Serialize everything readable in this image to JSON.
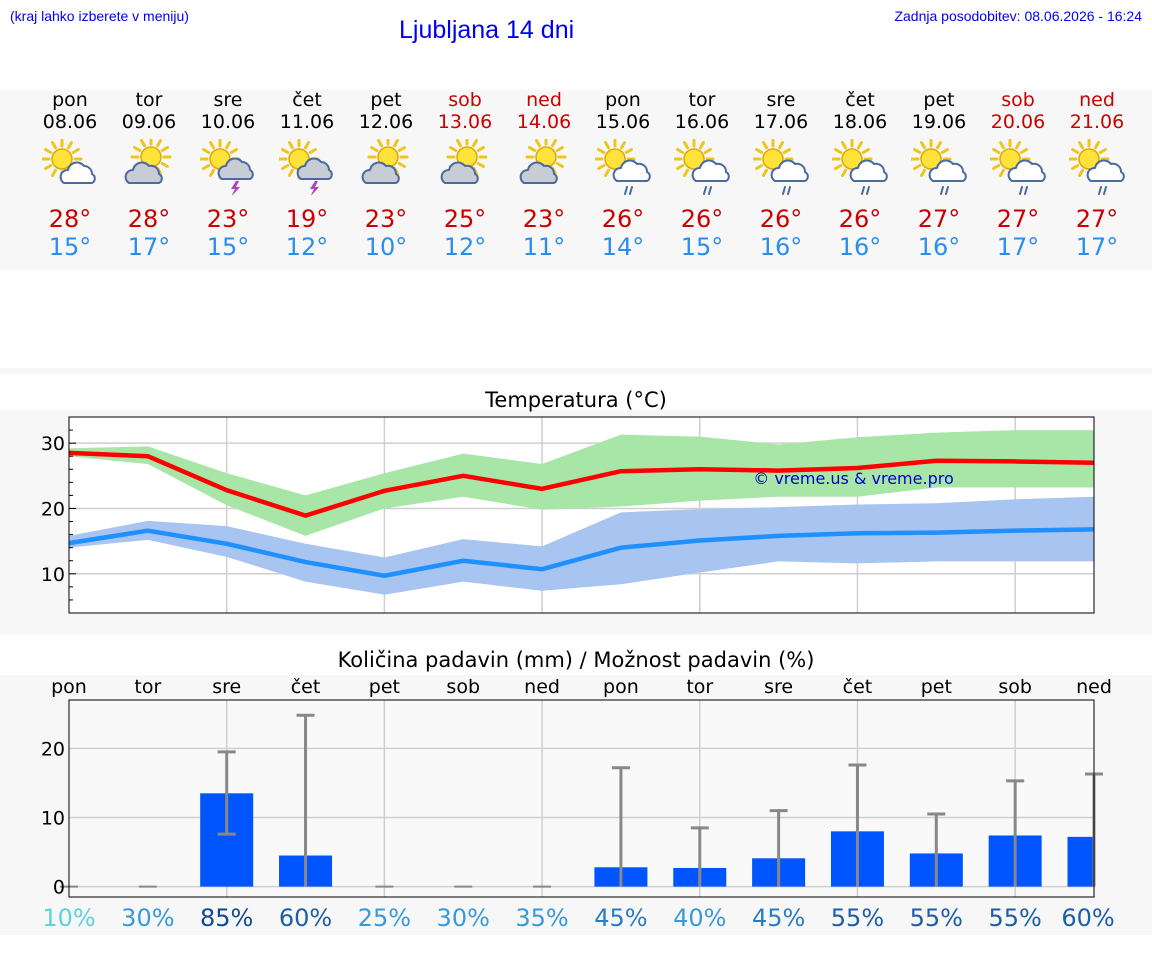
{
  "header": {
    "hint": "(kraj lahko izberete v meniju)",
    "title": "Ljubljana 14 dni",
    "updated": "Zadnja posodobitev: 08.06.2026 - 16:24"
  },
  "colors": {
    "link": "#0000ee",
    "max_temp": "#cc0000",
    "min_temp": "#2a8ef0",
    "max_band": "#a8e6a8",
    "min_band": "#a8c4f0",
    "max_line": "#ff0000",
    "min_line": "#1e90ff",
    "bars": "#0055ff",
    "error_bars": "#888888"
  },
  "forecast": {
    "days": [
      {
        "name": "pon",
        "date": "08.06",
        "icon": "partly-cloudy-icon",
        "max": "28°",
        "min": "15°",
        "weekend": false
      },
      {
        "name": "tor",
        "date": "09.06",
        "icon": "mostly-cloudy-icon",
        "max": "28°",
        "min": "17°",
        "weekend": false
      },
      {
        "name": "sre",
        "date": "10.06",
        "icon": "thunderstorm-icon",
        "max": "23°",
        "min": "15°",
        "weekend": false
      },
      {
        "name": "čet",
        "date": "11.06",
        "icon": "thunderstorm-icon",
        "max": "19°",
        "min": "12°",
        "weekend": false
      },
      {
        "name": "pet",
        "date": "12.06",
        "icon": "mostly-cloudy-icon",
        "max": "23°",
        "min": "10°",
        "weekend": false
      },
      {
        "name": "sob",
        "date": "13.06",
        "icon": "mostly-cloudy-icon",
        "max": "25°",
        "min": "12°",
        "weekend": true
      },
      {
        "name": "ned",
        "date": "14.06",
        "icon": "mostly-cloudy-icon",
        "max": "23°",
        "min": "11°",
        "weekend": true
      },
      {
        "name": "pon",
        "date": "15.06",
        "icon": "sun-rain-icon",
        "max": "26°",
        "min": "14°",
        "weekend": false
      },
      {
        "name": "tor",
        "date": "16.06",
        "icon": "sun-rain-icon",
        "max": "26°",
        "min": "15°",
        "weekend": false
      },
      {
        "name": "sre",
        "date": "17.06",
        "icon": "sun-rain-icon",
        "max": "26°",
        "min": "16°",
        "weekend": false
      },
      {
        "name": "čet",
        "date": "18.06",
        "icon": "sun-rain-icon",
        "max": "26°",
        "min": "16°",
        "weekend": false
      },
      {
        "name": "pet",
        "date": "19.06",
        "icon": "sun-rain-icon",
        "max": "27°",
        "min": "16°",
        "weekend": false
      },
      {
        "name": "sob",
        "date": "20.06",
        "icon": "sun-rain-icon",
        "max": "27°",
        "min": "17°",
        "weekend": true
      },
      {
        "name": "ned",
        "date": "21.06",
        "icon": "sun-rain-icon",
        "max": "27°",
        "min": "17°",
        "weekend": true
      }
    ]
  },
  "chart_data": [
    {
      "type": "line",
      "title": "Temperatura (°C)",
      "watermark": "© vreme.us & vreme.pro",
      "ylim": [
        4,
        34
      ],
      "yticks": [
        10,
        20,
        30
      ],
      "grid": true,
      "x_days": 14,
      "series": [
        {
          "role": "max",
          "values": [
            28.5,
            28,
            22.8,
            18.9,
            22.7,
            25,
            23,
            25.7,
            26,
            25.8,
            26.2,
            27.3,
            27.2,
            27
          ]
        },
        {
          "role": "min",
          "values": [
            14.7,
            16.6,
            14.6,
            11.8,
            9.7,
            12,
            10.7,
            14,
            15.1,
            15.8,
            16.2,
            16.3,
            16.6,
            16.8
          ]
        }
      ],
      "bands": [
        {
          "role": "max",
          "low": [
            28,
            26.8,
            20.5,
            15.8,
            20,
            21.8,
            19.8,
            20.3,
            21.2,
            21.8,
            21.8,
            23.2,
            23.2,
            23.2
          ],
          "high": [
            29.2,
            29.5,
            25.4,
            22,
            25.4,
            28.4,
            26.8,
            31.3,
            31,
            29.8,
            30.9,
            31.6,
            32,
            32
          ]
        },
        {
          "role": "min",
          "low": [
            14,
            15.2,
            12.6,
            8.8,
            6.8,
            8.8,
            7.4,
            8.4,
            10.2,
            11.9,
            11.6,
            11.9,
            11.9,
            11.9
          ],
          "high": [
            15.8,
            18.1,
            17.3,
            14.6,
            12.5,
            15.3,
            14.2,
            19.4,
            19.9,
            20.2,
            20.6,
            20.8,
            21.4,
            21.8
          ]
        }
      ]
    },
    {
      "type": "bar",
      "title": "Količina padavin (mm) / Možnost padavin (%)",
      "categories": [
        "pon",
        "tor",
        "sre",
        "čet",
        "pet",
        "sob",
        "ned",
        "pon",
        "tor",
        "sre",
        "čet",
        "pet",
        "sob",
        "ned"
      ],
      "ylim": [
        -1.5,
        27
      ],
      "yticks": [
        0,
        10,
        20
      ],
      "grid": true,
      "values": [
        0,
        0,
        13.5,
        4.5,
        0,
        0,
        0,
        2.8,
        2.7,
        4.1,
        8,
        4.8,
        7.4,
        7.2
      ],
      "error_low": [
        0,
        0,
        7.6,
        0,
        0,
        0,
        0,
        0,
        0,
        0,
        0,
        0,
        0,
        0
      ],
      "error_high": [
        0,
        0,
        19.5,
        24.8,
        0,
        0,
        0,
        17.2,
        8.5,
        11,
        17.6,
        10.5,
        15.3,
        16.3
      ],
      "probability": [
        "10%",
        "30%",
        "85%",
        "60%",
        "25%",
        "30%",
        "35%",
        "45%",
        "40%",
        "45%",
        "55%",
        "55%",
        "55%",
        "60%"
      ],
      "probability_values": [
        10,
        30,
        85,
        60,
        25,
        30,
        35,
        45,
        40,
        45,
        55,
        55,
        55,
        60
      ]
    }
  ]
}
